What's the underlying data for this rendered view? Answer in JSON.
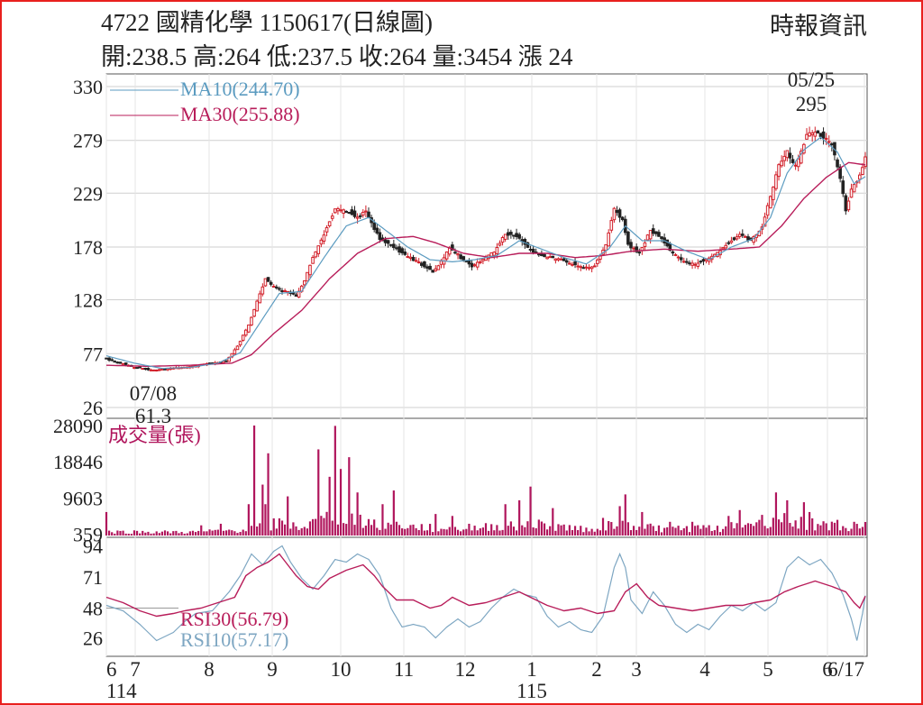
{
  "header": {
    "title": "4722 國精化學 1150617(日線圖)",
    "source": "時報資訊",
    "stats": "開:238.5 高:264 低:237.5 收:264 量:3454 漲 24"
  },
  "colors": {
    "up": "#d2202a",
    "down": "#222222",
    "ma10": "#5b9bc0",
    "ma30": "#b81d5a",
    "volume": "#b0155c",
    "rsi30": "#b81d5a",
    "rsi10": "#7da6c2",
    "frame": "#e8201e",
    "grid": "#cfcfcf"
  },
  "chart_data": [
    {
      "type": "candlestick",
      "panel": "price",
      "ylim": [
        26,
        330
      ],
      "yticks": [
        "330",
        "279",
        "229",
        "178",
        "128",
        "77",
        "26"
      ],
      "legend": [
        {
          "key": "ma10",
          "label": "MA10(244.70)"
        },
        {
          "key": "ma30",
          "label": "MA30(255.88)"
        }
      ],
      "annotations": [
        {
          "date": "05/25",
          "value": 295,
          "label_date": "05/25",
          "label_value": "295",
          "position": "above"
        },
        {
          "date": "07/08",
          "value": 61.3,
          "label_date": "07/08",
          "label_value": "61.3",
          "position": "below"
        }
      ],
      "closes_anchor": [
        [
          0,
          72
        ],
        [
          5,
          68
        ],
        [
          10,
          64
        ],
        [
          15,
          62
        ],
        [
          18,
          61.3
        ],
        [
          22,
          63
        ],
        [
          28,
          64
        ],
        [
          33,
          66
        ],
        [
          38,
          68
        ],
        [
          43,
          70
        ],
        [
          47,
          84
        ],
        [
          51,
          104
        ],
        [
          54,
          126
        ],
        [
          57,
          148
        ],
        [
          60,
          140
        ],
        [
          64,
          136
        ],
        [
          68,
          132
        ],
        [
          71,
          146
        ],
        [
          74,
          168
        ],
        [
          78,
          190
        ],
        [
          82,
          214
        ],
        [
          86,
          212
        ],
        [
          90,
          206
        ],
        [
          93,
          212
        ],
        [
          95,
          200
        ],
        [
          98,
          186
        ],
        [
          102,
          180
        ],
        [
          106,
          172
        ],
        [
          110,
          166
        ],
        [
          114,
          160
        ],
        [
          117,
          154
        ],
        [
          120,
          164
        ],
        [
          123,
          178
        ],
        [
          127,
          168
        ],
        [
          131,
          160
        ],
        [
          135,
          166
        ],
        [
          139,
          174
        ],
        [
          143,
          190
        ],
        [
          147,
          188
        ],
        [
          151,
          178
        ],
        [
          155,
          170
        ],
        [
          159,
          168
        ],
        [
          163,
          166
        ],
        [
          167,
          162
        ],
        [
          171,
          158
        ],
        [
          175,
          160
        ],
        [
          179,
          180
        ],
        [
          182,
          214
        ],
        [
          185,
          204
        ],
        [
          187,
          180
        ],
        [
          191,
          172
        ],
        [
          195,
          194
        ],
        [
          199,
          186
        ],
        [
          203,
          172
        ],
        [
          207,
          164
        ],
        [
          211,
          162
        ],
        [
          215,
          166
        ],
        [
          219,
          172
        ],
        [
          223,
          182
        ],
        [
          227,
          190
        ],
        [
          231,
          184
        ],
        [
          235,
          196
        ],
        [
          238,
          226
        ],
        [
          241,
          256
        ],
        [
          244,
          268
        ],
        [
          247,
          254
        ],
        [
          251,
          284
        ],
        [
          254,
          288
        ],
        [
          257,
          282
        ],
        [
          260,
          274
        ],
        [
          263,
          244
        ],
        [
          265,
          212
        ],
        [
          267,
          232
        ],
        [
          269,
          240
        ],
        [
          271,
          254
        ],
        [
          272,
          264
        ]
      ],
      "ma10_anchor": [
        [
          0,
          75
        ],
        [
          10,
          68
        ],
        [
          20,
          63
        ],
        [
          30,
          64
        ],
        [
          40,
          68
        ],
        [
          48,
          78
        ],
        [
          55,
          106
        ],
        [
          62,
          134
        ],
        [
          70,
          136
        ],
        [
          78,
          168
        ],
        [
          86,
          198
        ],
        [
          94,
          206
        ],
        [
          100,
          194
        ],
        [
          108,
          178
        ],
        [
          116,
          166
        ],
        [
          124,
          164
        ],
        [
          132,
          166
        ],
        [
          140,
          170
        ],
        [
          148,
          184
        ],
        [
          156,
          176
        ],
        [
          164,
          168
        ],
        [
          172,
          162
        ],
        [
          180,
          176
        ],
        [
          186,
          198
        ],
        [
          192,
          184
        ],
        [
          200,
          184
        ],
        [
          208,
          174
        ],
        [
          216,
          166
        ],
        [
          224,
          178
        ],
        [
          232,
          186
        ],
        [
          238,
          206
        ],
        [
          244,
          248
        ],
        [
          250,
          270
        ],
        [
          256,
          282
        ],
        [
          262,
          268
        ],
        [
          268,
          238
        ],
        [
          272,
          244.7
        ]
      ],
      "ma30_anchor": [
        [
          0,
          66
        ],
        [
          15,
          65
        ],
        [
          30,
          66
        ],
        [
          45,
          68
        ],
        [
          52,
          76
        ],
        [
          60,
          96
        ],
        [
          70,
          118
        ],
        [
          80,
          148
        ],
        [
          90,
          172
        ],
        [
          100,
          186
        ],
        [
          110,
          188
        ],
        [
          118,
          182
        ],
        [
          128,
          172
        ],
        [
          138,
          168
        ],
        [
          148,
          172
        ],
        [
          158,
          172
        ],
        [
          168,
          168
        ],
        [
          178,
          170
        ],
        [
          188,
          174
        ],
        [
          200,
          176
        ],
        [
          212,
          174
        ],
        [
          224,
          176
        ],
        [
          234,
          178
        ],
        [
          242,
          198
        ],
        [
          250,
          224
        ],
        [
          258,
          244
        ],
        [
          266,
          258
        ],
        [
          272,
          255.88
        ]
      ]
    },
    {
      "type": "bar",
      "panel": "volume",
      "title": "成交量(張)",
      "ylim": [
        0,
        28090
      ],
      "yticks": [
        "28090",
        "18846",
        "9603",
        "359"
      ],
      "spikes": [
        [
          0,
          6000
        ],
        [
          34,
          2600
        ],
        [
          41,
          3000
        ],
        [
          51,
          8000
        ],
        [
          53,
          28090
        ],
        [
          56,
          13000
        ],
        [
          57,
          8000
        ],
        [
          58,
          21000
        ],
        [
          65,
          10000
        ],
        [
          73,
          3600
        ],
        [
          76,
          22000
        ],
        [
          80,
          15000
        ],
        [
          82,
          28000
        ],
        [
          84,
          17000
        ],
        [
          87,
          20000
        ],
        [
          90,
          11000
        ],
        [
          99,
          8000
        ],
        [
          103,
          11500
        ],
        [
          118,
          5500
        ],
        [
          124,
          5000
        ],
        [
          130,
          3000
        ],
        [
          143,
          8000
        ],
        [
          148,
          9000
        ],
        [
          152,
          12500
        ],
        [
          160,
          7000
        ],
        [
          178,
          4500
        ],
        [
          184,
          7500
        ],
        [
          186,
          10500
        ],
        [
          192,
          6000
        ],
        [
          202,
          3500
        ],
        [
          210,
          3500
        ],
        [
          223,
          5000
        ],
        [
          227,
          6500
        ],
        [
          234,
          4000
        ],
        [
          240,
          11000
        ],
        [
          244,
          9000
        ],
        [
          250,
          8500
        ],
        [
          252,
          6000
        ],
        [
          262,
          4000
        ],
        [
          268,
          3500
        ],
        [
          272,
          3454
        ]
      ],
      "base": [
        [
          0,
          800
        ],
        [
          30,
          700
        ],
        [
          50,
          1200
        ],
        [
          60,
          2600
        ],
        [
          70,
          1800
        ],
        [
          82,
          4200
        ],
        [
          95,
          2800
        ],
        [
          110,
          1800
        ],
        [
          130,
          1400
        ],
        [
          150,
          2600
        ],
        [
          170,
          1500
        ],
        [
          185,
          2500
        ],
        [
          200,
          1500
        ],
        [
          220,
          1600
        ],
        [
          240,
          3500
        ],
        [
          256,
          2200
        ],
        [
          265,
          1700
        ],
        [
          272,
          1900
        ]
      ]
    },
    {
      "type": "line",
      "panel": "rsi",
      "ylim": [
        15,
        99
      ],
      "yticks": [
        "94",
        "71",
        "48",
        "26"
      ],
      "legend": [
        {
          "key": "rsi30",
          "label": "RSI30(56.79)"
        },
        {
          "key": "rsi10",
          "label": "RSI10(57.17)"
        }
      ],
      "rsi30_anchor": [
        [
          0,
          56
        ],
        [
          6,
          52
        ],
        [
          12,
          46
        ],
        [
          18,
          42
        ],
        [
          24,
          44
        ],
        [
          28,
          46
        ],
        [
          34,
          48
        ],
        [
          40,
          52
        ],
        [
          46,
          56
        ],
        [
          50,
          72
        ],
        [
          54,
          78
        ],
        [
          58,
          82
        ],
        [
          62,
          88
        ],
        [
          65,
          80
        ],
        [
          68,
          72
        ],
        [
          72,
          64
        ],
        [
          76,
          62
        ],
        [
          80,
          70
        ],
        [
          86,
          76
        ],
        [
          92,
          80
        ],
        [
          96,
          72
        ],
        [
          99,
          64
        ],
        [
          104,
          54
        ],
        [
          110,
          54
        ],
        [
          116,
          48
        ],
        [
          120,
          50
        ],
        [
          124,
          56
        ],
        [
          130,
          50
        ],
        [
          136,
          52
        ],
        [
          142,
          56
        ],
        [
          148,
          60
        ],
        [
          152,
          56
        ],
        [
          158,
          50
        ],
        [
          164,
          46
        ],
        [
          170,
          48
        ],
        [
          176,
          44
        ],
        [
          182,
          46
        ],
        [
          186,
          60
        ],
        [
          190,
          66
        ],
        [
          194,
          56
        ],
        [
          198,
          50
        ],
        [
          204,
          48
        ],
        [
          210,
          46
        ],
        [
          216,
          48
        ],
        [
          222,
          50
        ],
        [
          228,
          50
        ],
        [
          232,
          52
        ],
        [
          238,
          54
        ],
        [
          243,
          60
        ],
        [
          248,
          64
        ],
        [
          254,
          68
        ],
        [
          260,
          64
        ],
        [
          265,
          60
        ],
        [
          268,
          52
        ],
        [
          270,
          48
        ],
        [
          272,
          56.79
        ]
      ],
      "rsi10_anchor": [
        [
          0,
          50
        ],
        [
          6,
          46
        ],
        [
          12,
          36
        ],
        [
          18,
          24
        ],
        [
          24,
          30
        ],
        [
          28,
          38
        ],
        [
          32,
          44
        ],
        [
          38,
          46
        ],
        [
          44,
          60
        ],
        [
          48,
          72
        ],
        [
          52,
          88
        ],
        [
          56,
          80
        ],
        [
          60,
          90
        ],
        [
          63,
          94
        ],
        [
          66,
          82
        ],
        [
          70,
          70
        ],
        [
          74,
          62
        ],
        [
          78,
          72
        ],
        [
          82,
          84
        ],
        [
          86,
          82
        ],
        [
          90,
          88
        ],
        [
          94,
          84
        ],
        [
          98,
          72
        ],
        [
          102,
          48
        ],
        [
          106,
          34
        ],
        [
          110,
          36
        ],
        [
          114,
          34
        ],
        [
          118,
          26
        ],
        [
          122,
          34
        ],
        [
          126,
          40
        ],
        [
          130,
          34
        ],
        [
          134,
          38
        ],
        [
          138,
          48
        ],
        [
          142,
          56
        ],
        [
          146,
          62
        ],
        [
          150,
          58
        ],
        [
          154,
          56
        ],
        [
          158,
          42
        ],
        [
          162,
          34
        ],
        [
          166,
          38
        ],
        [
          170,
          32
        ],
        [
          174,
          30
        ],
        [
          178,
          42
        ],
        [
          182,
          78
        ],
        [
          184,
          88
        ],
        [
          186,
          78
        ],
        [
          188,
          54
        ],
        [
          192,
          44
        ],
        [
          196,
          60
        ],
        [
          200,
          50
        ],
        [
          204,
          36
        ],
        [
          208,
          30
        ],
        [
          212,
          36
        ],
        [
          216,
          32
        ],
        [
          220,
          42
        ],
        [
          224,
          50
        ],
        [
          228,
          46
        ],
        [
          232,
          52
        ],
        [
          236,
          46
        ],
        [
          240,
          52
        ],
        [
          244,
          78
        ],
        [
          248,
          86
        ],
        [
          252,
          80
        ],
        [
          256,
          84
        ],
        [
          260,
          74
        ],
        [
          264,
          58
        ],
        [
          267,
          40
        ],
        [
          269,
          24
        ],
        [
          271,
          44
        ],
        [
          272,
          57.17
        ]
      ]
    }
  ],
  "x_axis": {
    "months": [
      "6",
      "7",
      "8",
      "9",
      "10",
      "11",
      "12",
      "1",
      "2",
      "3",
      "4",
      "5",
      "6",
      "6/17"
    ],
    "years": [
      "114",
      "115"
    ]
  }
}
